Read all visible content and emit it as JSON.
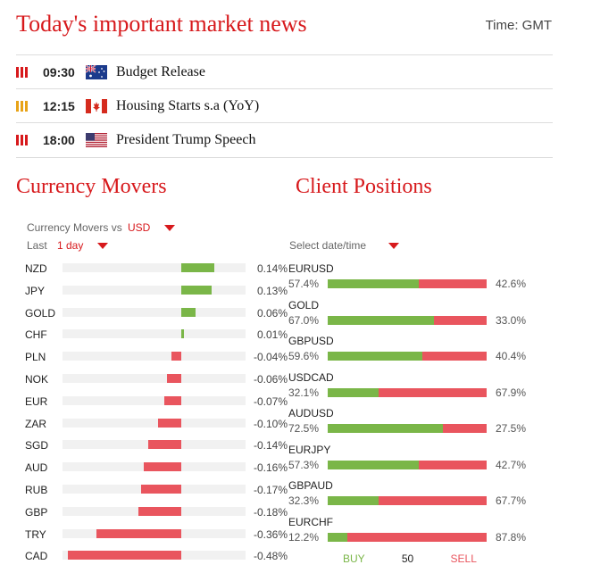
{
  "header": {
    "title": "Today's important market news",
    "timezone": "Time: GMT"
  },
  "news": [
    {
      "time": "09:30",
      "flag": "australia-flag",
      "text": "Budget Release",
      "importance": "high",
      "importance_color": "#d7191c"
    },
    {
      "time": "12:15",
      "flag": "canada-flag",
      "text": "Housing Starts s.a (YoY)",
      "importance": "medium",
      "importance_color": "#e8a317"
    },
    {
      "time": "18:00",
      "flag": "usa-flag",
      "text": "President Trump Speech",
      "importance": "high",
      "importance_color": "#d7191c"
    }
  ],
  "currency_movers": {
    "title": "Currency Movers",
    "vs_label": "Currency Movers vs",
    "vs_value": "USD",
    "last_label": "Last",
    "last_value": "1 day",
    "positive_color": "#7ab648",
    "negative_color": "#e9555e",
    "rows": [
      {
        "name": "NZD",
        "value": "0.14%",
        "change": 0.14
      },
      {
        "name": "JPY",
        "value": "0.13%",
        "change": 0.13
      },
      {
        "name": "GOLD",
        "value": "0.06%",
        "change": 0.06
      },
      {
        "name": "CHF",
        "value": "0.01%",
        "change": 0.01
      },
      {
        "name": "PLN",
        "value": "-0.04%",
        "change": -0.04
      },
      {
        "name": "NOK",
        "value": "-0.06%",
        "change": -0.06
      },
      {
        "name": "EUR",
        "value": "-0.07%",
        "change": -0.07
      },
      {
        "name": "ZAR",
        "value": "-0.10%",
        "change": -0.1
      },
      {
        "name": "SGD",
        "value": "-0.14%",
        "change": -0.14
      },
      {
        "name": "AUD",
        "value": "-0.16%",
        "change": -0.16
      },
      {
        "name": "RUB",
        "value": "-0.17%",
        "change": -0.17
      },
      {
        "name": "GBP",
        "value": "-0.18%",
        "change": -0.18
      },
      {
        "name": "TRY",
        "value": "-0.36%",
        "change": -0.36
      },
      {
        "name": "CAD",
        "value": "-0.48%",
        "change": -0.48
      }
    ]
  },
  "client_positions": {
    "title": "Client Positions",
    "select_label": "Select date/time",
    "buy_label": "BUY",
    "mid_label": "50",
    "sell_label": "SELL",
    "buy_color": "#7ab648",
    "sell_color": "#e9555e",
    "rows": [
      {
        "name": "EURUSD",
        "buy": "57.4%",
        "sell": "42.6%",
        "buy_pct": 57.4
      },
      {
        "name": "GOLD",
        "buy": "67.0%",
        "sell": "33.0%",
        "buy_pct": 67.0
      },
      {
        "name": "GBPUSD",
        "buy": "59.6%",
        "sell": "40.4%",
        "buy_pct": 59.6
      },
      {
        "name": "USDCAD",
        "buy": "32.1%",
        "sell": "67.9%",
        "buy_pct": 32.1
      },
      {
        "name": "AUDUSD",
        "buy": "72.5%",
        "sell": "27.5%",
        "buy_pct": 72.5
      },
      {
        "name": "EURJPY",
        "buy": "57.3%",
        "sell": "42.7%",
        "buy_pct": 57.3
      },
      {
        "name": "GBPAUD",
        "buy": "32.3%",
        "sell": "67.7%",
        "buy_pct": 32.3
      },
      {
        "name": "EURCHF",
        "buy": "12.2%",
        "sell": "87.8%",
        "buy_pct": 12.2
      }
    ]
  }
}
